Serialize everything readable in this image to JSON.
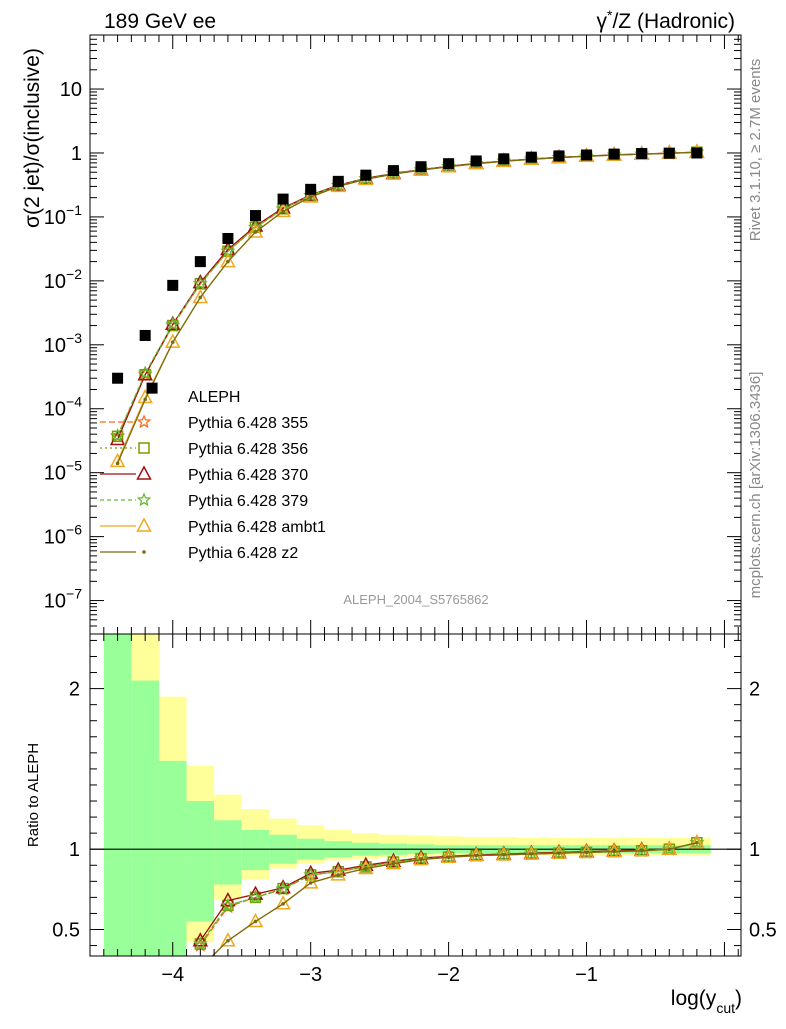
{
  "header": {
    "left": "189 GeV ee",
    "right_sup": "*",
    "right_pre": "γ",
    "right_post": "/Z (Hadronic)"
  },
  "side_labels": {
    "rivet": "Rivet 3.1.10, ≥ 2.7M events",
    "mcplots": "mcplots.cern.ch [arXiv:1306.3436]"
  },
  "watermark": "ALEPH_2004_S5765862",
  "colors": {
    "data": "#000000",
    "band_stat": "#99ff99",
    "band_total": "#ffff99"
  },
  "chart_data": [
    {
      "type": "scatter",
      "panel": "main",
      "y_scale": "log",
      "ylabel": "σ(2 jet)/σ(inclusive)",
      "xlim": [
        -4.6,
        0.12
      ],
      "ylim": [
        3e-08,
        70
      ],
      "y_ticks": [
        {
          "v": 1e-07,
          "mant": "10",
          "exp": "−7"
        },
        {
          "v": 1e-06,
          "mant": "10",
          "exp": "−6"
        },
        {
          "v": 1e-05,
          "mant": "10",
          "exp": "−5"
        },
        {
          "v": 0.0001,
          "mant": "10",
          "exp": "−4"
        },
        {
          "v": 0.001,
          "mant": "10",
          "exp": "−3"
        },
        {
          "v": 0.01,
          "mant": "10",
          "exp": "−2"
        },
        {
          "v": 0.1,
          "mant": "10",
          "exp": "−1"
        },
        {
          "v": 1,
          "mant": "1",
          "exp": ""
        },
        {
          "v": 10,
          "mant": "10",
          "exp": ""
        }
      ],
      "x": [
        -4.4,
        -4.2,
        -4.0,
        -3.8,
        -3.6,
        -3.4,
        -3.2,
        -3.0,
        -2.8,
        -2.6,
        -2.4,
        -2.2,
        -2.0,
        -1.8,
        -1.6,
        -1.4,
        -1.2,
        -1.0,
        -0.8,
        -0.6,
        -0.4,
        -0.2
      ],
      "data_series": {
        "name": "ALEPH",
        "x": [
          -4.4,
          -4.2,
          -4.15,
          -4.0,
          -3.8,
          -3.6,
          -3.4,
          -3.2,
          -3.0,
          -2.8,
          -2.6,
          -2.4,
          -2.2,
          -2.0,
          -1.8,
          -1.6,
          -1.4,
          -1.2,
          -1.0,
          -0.8,
          -0.6,
          -0.4,
          -0.2
        ],
        "values": [
          0.0003,
          0.0014,
          0.00021,
          0.0085,
          0.02,
          0.046,
          0.105,
          0.19,
          0.27,
          0.36,
          0.45,
          0.53,
          0.61,
          0.68,
          0.75,
          0.81,
          0.86,
          0.9,
          0.93,
          0.96,
          0.98,
          0.99,
          1.0
        ]
      },
      "series": [
        {
          "name": "Pythia 6.428 355",
          "color": "#ff6a1a",
          "marker": "star",
          "dash": "6,3",
          "values": [
            3.7e-05,
            0.00034,
            0.002,
            0.009,
            0.029,
            0.068,
            0.133,
            0.215,
            0.31,
            0.395,
            0.475,
            0.545,
            0.615,
            0.685,
            0.745,
            0.8,
            0.85,
            0.89,
            0.93,
            0.96,
            0.99,
            1.03
          ]
        },
        {
          "name": "Pythia 6.428 356",
          "color": "#7a9a00",
          "marker": "square",
          "dash": "2,3",
          "values": [
            3.7e-05,
            0.00034,
            0.002,
            0.009,
            0.029,
            0.069,
            0.134,
            0.216,
            0.31,
            0.395,
            0.475,
            0.545,
            0.615,
            0.685,
            0.745,
            0.8,
            0.85,
            0.89,
            0.93,
            0.96,
            0.99,
            1.03
          ]
        },
        {
          "name": "Pythia 6.428 370",
          "color": "#a01010",
          "marker": "triangle",
          "dash": "",
          "values": [
            3.3e-05,
            0.00034,
            0.0021,
            0.0094,
            0.031,
            0.072,
            0.138,
            0.22,
            0.315,
            0.4,
            0.48,
            0.55,
            0.62,
            0.69,
            0.75,
            0.805,
            0.855,
            0.895,
            0.935,
            0.965,
            0.995,
            1.03
          ]
        },
        {
          "name": "Pythia 6.428 379",
          "color": "#66bb33",
          "marker": "star",
          "dash": "4,3",
          "values": [
            3.8e-05,
            0.00036,
            0.0021,
            0.009,
            0.029,
            0.069,
            0.134,
            0.216,
            0.31,
            0.395,
            0.475,
            0.545,
            0.615,
            0.685,
            0.745,
            0.8,
            0.85,
            0.89,
            0.93,
            0.96,
            0.99,
            1.03
          ]
        },
        {
          "name": "Pythia 6.428 ambt1",
          "color": "#f0a81e",
          "marker": "triangle",
          "dash": "",
          "values": [
            1.5e-05,
            0.00015,
            0.0011,
            0.0055,
            0.02,
            0.058,
            0.122,
            0.205,
            0.3,
            0.387,
            0.468,
            0.54,
            0.61,
            0.68,
            0.74,
            0.797,
            0.847,
            0.887,
            0.927,
            0.957,
            0.987,
            1.03
          ]
        },
        {
          "name": "Pythia 6.428 z2",
          "color": "#7a6a10",
          "marker": "dot",
          "dash": "",
          "values": [
            1.4e-05,
            0.00014,
            0.0011,
            0.0055,
            0.02,
            0.058,
            0.122,
            0.205,
            0.3,
            0.387,
            0.468,
            0.54,
            0.61,
            0.68,
            0.74,
            0.797,
            0.847,
            0.887,
            0.927,
            0.957,
            0.987,
            1.03
          ]
        }
      ]
    },
    {
      "type": "line",
      "panel": "ratio",
      "ylabel": "Ratio to ALEPH",
      "xlabel_main": "log(y",
      "xlabel_sub": "cut",
      "xlabel_close": ")",
      "xlim": [
        -4.6,
        0.12
      ],
      "ylim": [
        0.335,
        2.34
      ],
      "y_ticks": [
        {
          "v": 0.5,
          "label": "0.5"
        },
        {
          "v": 1,
          "label": "1"
        },
        {
          "v": 2,
          "label": "2"
        }
      ],
      "x_ticks": [
        {
          "v": -4,
          "label": "−4"
        },
        {
          "v": -3,
          "label": "−3"
        },
        {
          "v": -2,
          "label": "−2"
        },
        {
          "v": -1,
          "label": "−1"
        }
      ],
      "bands": {
        "edges": [
          -4.5,
          -4.3,
          -4.1,
          -3.9,
          -3.7,
          -3.5,
          -3.3,
          -3.1,
          -2.9,
          -2.7,
          -2.5,
          -2.3,
          -2.1,
          -1.9,
          -1.7,
          -1.5,
          -1.3,
          -1.1,
          -0.9,
          -0.7,
          -0.5,
          -0.3,
          -0.1
        ],
        "stat_lo": [
          0.0,
          0.0,
          0.0,
          0.55,
          0.78,
          0.87,
          0.91,
          0.935,
          0.95,
          0.96,
          0.965,
          0.97,
          0.975,
          0.975,
          0.975,
          0.975,
          0.975,
          0.975,
          0.975,
          0.975,
          0.975,
          0.975
        ],
        "stat_hi": [
          2.5,
          2.05,
          1.55,
          1.3,
          1.18,
          1.12,
          1.09,
          1.065,
          1.05,
          1.04,
          1.035,
          1.03,
          1.025,
          1.025,
          1.025,
          1.025,
          1.025,
          1.025,
          1.025,
          1.025,
          1.025,
          1.025
        ],
        "tot_lo": [
          0.0,
          0.0,
          0.54,
          0.42,
          0.69,
          0.81,
          0.88,
          0.91,
          0.93,
          0.94,
          0.95,
          0.955,
          0.96,
          0.96,
          0.96,
          0.96,
          0.96,
          0.96,
          0.96,
          0.96,
          0.96,
          0.96
        ],
        "tot_hi": [
          2.5,
          2.5,
          1.95,
          1.52,
          1.34,
          1.25,
          1.19,
          1.15,
          1.12,
          1.1,
          1.09,
          1.085,
          1.08,
          1.075,
          1.075,
          1.07,
          1.07,
          1.07,
          1.07,
          1.07,
          1.07,
          1.07
        ]
      },
      "series": [
        {
          "name": "Pythia 6.428 355",
          "color": "#ff6a1a",
          "marker": "star",
          "dash": "6,3",
          "values": [
            null,
            null,
            null,
            0.4,
            0.64,
            0.7,
            0.75,
            0.84,
            0.86,
            0.89,
            0.92,
            0.94,
            0.95,
            0.96,
            0.965,
            0.97,
            0.975,
            0.98,
            0.985,
            0.99,
            1.0,
            1.04
          ]
        },
        {
          "name": "Pythia 6.428 356",
          "color": "#7a9a00",
          "marker": "square",
          "dash": "2,3",
          "values": [
            null,
            null,
            null,
            0.41,
            0.65,
            0.7,
            0.755,
            0.84,
            0.86,
            0.89,
            0.92,
            0.94,
            0.95,
            0.96,
            0.965,
            0.97,
            0.975,
            0.98,
            0.985,
            0.99,
            1.0,
            1.04
          ]
        },
        {
          "name": "Pythia 6.428 370",
          "color": "#a01010",
          "marker": "triangle",
          "dash": "",
          "values": [
            null,
            null,
            null,
            0.43,
            0.68,
            0.72,
            0.76,
            0.85,
            0.87,
            0.9,
            0.925,
            0.945,
            0.955,
            0.965,
            0.97,
            0.975,
            0.98,
            0.985,
            0.99,
            0.995,
            1.0,
            1.04
          ]
        },
        {
          "name": "Pythia 6.428 379",
          "color": "#66bb33",
          "marker": "star",
          "dash": "4,3",
          "values": [
            null,
            null,
            null,
            0.41,
            0.65,
            0.7,
            0.755,
            0.84,
            0.86,
            0.89,
            0.92,
            0.94,
            0.95,
            0.96,
            0.965,
            0.97,
            0.975,
            0.98,
            0.985,
            0.99,
            1.0,
            1.04
          ]
        },
        {
          "name": "Pythia 6.428 ambt1",
          "color": "#f0a81e",
          "marker": "triangle",
          "dash": "",
          "values": [
            null,
            null,
            null,
            0.26,
            0.43,
            0.55,
            0.66,
            0.79,
            0.84,
            0.88,
            0.91,
            0.935,
            0.95,
            0.96,
            0.965,
            0.97,
            0.975,
            0.98,
            0.985,
            0.99,
            1.0,
            1.04
          ]
        },
        {
          "name": "Pythia 6.428 z2",
          "color": "#7a6a10",
          "marker": "dot",
          "dash": "",
          "values": [
            null,
            null,
            null,
            0.26,
            0.43,
            0.55,
            0.66,
            0.79,
            0.84,
            0.88,
            0.91,
            0.935,
            0.95,
            0.96,
            0.965,
            0.97,
            0.975,
            0.98,
            0.985,
            0.99,
            1.0,
            1.04
          ]
        }
      ]
    }
  ]
}
